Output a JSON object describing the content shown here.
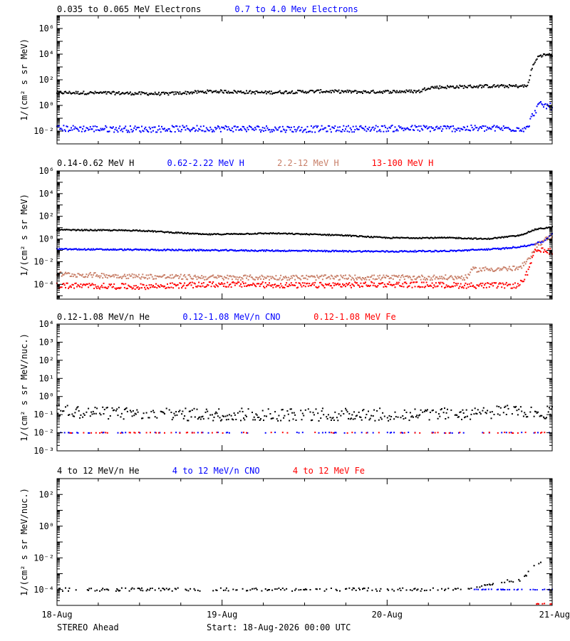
{
  "footer": {
    "spacecraft": "STEREO Ahead",
    "start": "Start: 18-Aug-2026 00:00 UTC"
  },
  "colors": {
    "black": "#000000",
    "blue": "#0000ff",
    "tan": "#c87f68",
    "red": "#ff0000"
  },
  "chart_data": [
    {
      "type": "scatter",
      "legend": [
        {
          "text": "0.035 to 0.065 MeV Electrons",
          "color": "#000000"
        },
        {
          "text": "0.7 to 4.0 Mev Electrons",
          "color": "#0000ff"
        }
      ],
      "ylabel": "1/(cm² s sr MeV)",
      "yscale": "log",
      "ylim_exp": [
        -3,
        7
      ],
      "ytick_labels": [
        "10⁻²",
        "10⁰",
        "10²",
        "10⁴",
        "10⁶"
      ],
      "ytick_exps": [
        -2,
        0,
        2,
        4,
        6
      ],
      "x_days": [
        0,
        1,
        2,
        3
      ],
      "series": [
        {
          "color": "#000000",
          "x": [
            0,
            0.4,
            0.65,
            0.95,
            1.25,
            1.6,
            1.85,
            2.2,
            2.25,
            2.6,
            2.85,
            2.88,
            2.92,
            3.0
          ],
          "log10": [
            1.0,
            0.95,
            0.9,
            1.1,
            1.0,
            1.1,
            1.05,
            1.1,
            1.4,
            1.5,
            1.5,
            3.0,
            3.9,
            3.95
          ],
          "scatter": 0.12
        },
        {
          "color": "#0000ff",
          "x": [
            0,
            0.5,
            1.0,
            1.5,
            2.0,
            2.5,
            2.85,
            2.88,
            2.92,
            3.0
          ],
          "log10": [
            -1.8,
            -1.85,
            -1.8,
            -1.85,
            -1.8,
            -1.8,
            -1.8,
            -0.8,
            0.05,
            -0.1
          ],
          "scatter": 0.25
        }
      ]
    },
    {
      "type": "scatter",
      "legend": [
        {
          "text": "0.14-0.62 MeV H",
          "color": "#000000"
        },
        {
          "text": "0.62-2.22 MeV H",
          "color": "#0000ff"
        },
        {
          "text": "2.2-12 MeV H",
          "color": "#c87f68"
        },
        {
          "text": "13-100 MeV H",
          "color": "#ff0000"
        }
      ],
      "ylabel": "1/(cm² s sr MeV)",
      "yscale": "log",
      "ylim_exp": [
        -5.3,
        6
      ],
      "ytick_labels": [
        "10⁻⁴",
        "10⁻²",
        "10⁰",
        "10²",
        "10⁴",
        "10⁶"
      ],
      "ytick_exps": [
        -4,
        -2,
        0,
        2,
        4,
        6
      ],
      "x_days": [
        0,
        1,
        2,
        3
      ],
      "series": [
        {
          "color": "#000000",
          "x": [
            0,
            0.5,
            0.9,
            1.3,
            1.7,
            2.0,
            2.4,
            2.6,
            2.8,
            2.9,
            3.0
          ],
          "log10": [
            0.8,
            0.75,
            0.4,
            0.5,
            0.35,
            0.1,
            0.1,
            0.0,
            0.3,
            0.85,
            1.05
          ],
          "scatter": 0.05
        },
        {
          "color": "#0000ff",
          "x": [
            0,
            0.5,
            1.0,
            1.5,
            2.0,
            2.4,
            2.7,
            2.85,
            2.95,
            3.0
          ],
          "log10": [
            -0.9,
            -0.95,
            -1.0,
            -1.05,
            -1.1,
            -1.05,
            -0.85,
            -0.6,
            -0.2,
            0.5
          ],
          "scatter": 0.06
        },
        {
          "color": "#c87f68",
          "x": [
            0,
            0.5,
            1.0,
            1.5,
            2.0,
            2.48,
            2.52,
            2.8,
            2.85,
            2.9,
            3.0
          ],
          "log10": [
            -3.1,
            -3.3,
            -3.4,
            -3.4,
            -3.4,
            -3.4,
            -2.7,
            -2.6,
            -2.0,
            -0.6,
            0.3
          ],
          "scatter": 0.22
        },
        {
          "color": "#ff0000",
          "x": [
            0,
            0.5,
            1.0,
            1.5,
            2.0,
            2.5,
            2.8,
            2.85,
            2.9,
            3.0
          ],
          "log10": [
            -4.1,
            -4.2,
            -4.0,
            -4.1,
            -4.0,
            -4.1,
            -4.1,
            -3.0,
            -1.0,
            -1.1
          ],
          "scatter": 0.25
        }
      ]
    },
    {
      "type": "scatter",
      "legend": [
        {
          "text": "0.12-1.08 MeV/n He",
          "color": "#000000"
        },
        {
          "text": "0.12-1.08 MeV/n CNO",
          "color": "#0000ff"
        },
        {
          "text": "0.12-1.08 MeV Fe",
          "color": "#ff0000"
        }
      ],
      "ylabel": "1/(cm² s sr MeV/nuc.)",
      "yscale": "log",
      "ylim_exp": [
        -3,
        4
      ],
      "ytick_labels": [
        "10⁻³",
        "10⁻²",
        "10⁻¹",
        "10⁰",
        "10¹",
        "10²",
        "10³",
        "10⁴"
      ],
      "ytick_exps": [
        -3,
        -2,
        -1,
        0,
        1,
        2,
        3,
        4
      ],
      "x_days": [
        0,
        1,
        2,
        3
      ],
      "series": [
        {
          "color": "#000000",
          "x": [
            0,
            0.3,
            0.6,
            1.0,
            1.5,
            2.0,
            2.5,
            2.8,
            3.0
          ],
          "log10": [
            -0.8,
            -0.9,
            -1.0,
            -1.0,
            -1.0,
            -1.0,
            -0.95,
            -0.8,
            -0.9
          ],
          "scatter": 0.35,
          "density": 0.7
        },
        {
          "color": "#0000ff",
          "x": [
            0,
            3.0
          ],
          "log10": [
            -2.0,
            -2.0
          ],
          "scatter": 0.02,
          "density": 0.18
        },
        {
          "color": "#ff0000",
          "x": [
            0,
            3.0
          ],
          "log10": [
            -2.0,
            -2.0
          ],
          "scatter": 0.02,
          "density": 0.12
        }
      ]
    },
    {
      "type": "scatter",
      "legend": [
        {
          "text": "4 to 12 MeV/n He",
          "color": "#000000"
        },
        {
          "text": "4 to 12 MeV/n CNO",
          "color": "#0000ff"
        },
        {
          "text": "4 to 12 MeV Fe",
          "color": "#ff0000"
        }
      ],
      "ylabel": "1/(cm² s sr MeV/nuc.)",
      "yscale": "log",
      "ylim_exp": [
        -5,
        3
      ],
      "ytick_labels": [
        "10⁻⁴",
        "10⁻²",
        "10⁰",
        "10²"
      ],
      "ytick_exps": [
        -4,
        -2,
        0,
        2
      ],
      "x_days": [
        0,
        1,
        2,
        3
      ],
      "xtick_labels": [
        "18-Aug",
        "19-Aug",
        "20-Aug",
        "21-Aug"
      ],
      "series": [
        {
          "color": "#000000",
          "x": [
            0,
            2.0,
            2.5,
            2.7,
            2.8,
            2.85,
            2.9,
            3.0
          ],
          "log10": [
            -4.0,
            -4.0,
            -4.0,
            -3.5,
            -3.4,
            -3.0,
            -2.3,
            -2.3
          ],
          "scatter": 0.1,
          "density": 0.35
        },
        {
          "color": "#0000ff",
          "x": [
            2.5,
            3.0
          ],
          "log10": [
            -4.0,
            -4.0
          ],
          "scatter": 0.02,
          "density": 0.3
        },
        {
          "color": "#ff0000",
          "x": [
            2.9,
            3.0
          ],
          "log10": [
            -4.9,
            -4.9
          ],
          "scatter": 0.02,
          "density": 0.3
        }
      ]
    }
  ]
}
